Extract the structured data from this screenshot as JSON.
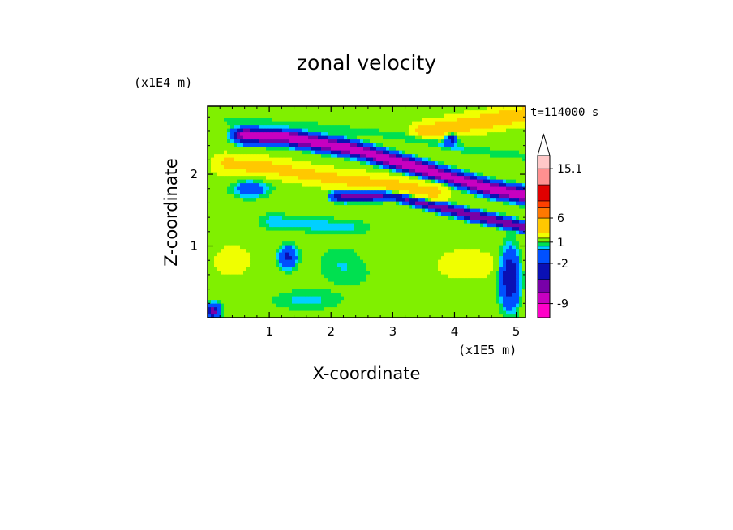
{
  "chart_data": {
    "type": "heatmap",
    "title": "zonal velocity",
    "xlabel": "X-coordinate",
    "ylabel": "Z-coordinate",
    "x_unit": "(x1E5 m)",
    "y_unit": "(x1E4 m)",
    "time_label": "t=114000 s",
    "xlim": [
      0,
      5.15
    ],
    "ylim": [
      0,
      2.95
    ],
    "x_ticks": [
      "1",
      "2",
      "3",
      "4",
      "5"
    ],
    "y_ticks": [
      "1",
      "2"
    ],
    "colorbar": {
      "levels": [
        -12,
        -9,
        -6,
        -4,
        -2,
        0,
        0.5,
        1,
        2,
        4,
        6,
        8,
        10,
        12,
        15.1
      ],
      "colors": [
        "#ff00c8",
        "#c800c0",
        "#7800a8",
        "#0a10b4",
        "#0050ff",
        "#00d0ff",
        "#00e050",
        "#80f000",
        "#f0ff00",
        "#ffc800",
        "#ff7800",
        "#ff4000",
        "#e00000",
        "#ff9090",
        "#ffc8c8"
      ],
      "labels": [
        "15.1",
        "6",
        "1",
        "-2",
        "-9"
      ],
      "label_values": [
        15.1,
        6,
        1,
        -2,
        -9
      ],
      "extend": "max"
    },
    "features": [
      {
        "kind": "jet",
        "x": [
          0.6,
          1.3,
          2.4,
          3.6,
          4.6,
          5.2
        ],
        "z": [
          2.55,
          2.52,
          2.35,
          2.05,
          1.8,
          1.7
        ],
        "value": -8,
        "width": 0.1
      },
      {
        "kind": "jet",
        "x": [
          2.2,
          3.0,
          3.6,
          4.2,
          5.0,
          5.2
        ],
        "z": [
          1.7,
          1.72,
          1.58,
          1.45,
          1.3,
          1.25
        ],
        "value": -6,
        "width": 0.07
      },
      {
        "kind": "jet",
        "x": [
          0.3,
          1.0,
          2.0,
          3.0,
          3.7
        ],
        "z": [
          2.15,
          2.1,
          1.95,
          1.85,
          1.75
        ],
        "value": 5,
        "width": 0.12
      },
      {
        "kind": "jet",
        "x": [
          3.5,
          4.2,
          5.2
        ],
        "z": [
          2.6,
          2.7,
          2.85
        ],
        "value": 6,
        "width": 0.12
      },
      {
        "kind": "jet",
        "x": [
          0.4,
          1.5,
          3.0,
          4.2,
          5.2
        ],
        "z": [
          2.75,
          2.7,
          2.55,
          2.35,
          2.25
        ],
        "value": 0.5,
        "width": 0.06
      },
      {
        "kind": "jet",
        "x": [
          1.0,
          1.8,
          2.5
        ],
        "z": [
          1.35,
          1.3,
          1.25
        ],
        "value": 0.2,
        "width": 0.12
      },
      {
        "kind": "blob",
        "x": 2.3,
        "z": 0.75,
        "value": 0.2,
        "rx": 0.5,
        "rz": 0.3
      },
      {
        "kind": "blob",
        "x": 1.3,
        "z": 0.85,
        "value": -2.5,
        "rx": 0.15,
        "rz": 0.15
      },
      {
        "kind": "blob",
        "x": 4.2,
        "z": 0.75,
        "value": 3,
        "rx": 0.5,
        "rz": 0.2
      },
      {
        "kind": "blob",
        "x": 0.4,
        "z": 0.8,
        "value": 2.5,
        "rx": 0.35,
        "rz": 0.25
      },
      {
        "kind": "blob",
        "x": 2.9,
        "z": 0.95,
        "value": 1.5,
        "rx": 0.6,
        "rz": 0.35
      },
      {
        "kind": "blob",
        "x": 1.6,
        "z": 0.25,
        "value": 0.3,
        "rx": 0.6,
        "rz": 0.15
      },
      {
        "kind": "blob",
        "x": 4.9,
        "z": 0.55,
        "value": -4,
        "rx": 0.15,
        "rz": 0.4
      },
      {
        "kind": "blob",
        "x": 0.1,
        "z": 0.1,
        "value": -5,
        "rx": 0.1,
        "rz": 0.1
      },
      {
        "kind": "blob",
        "x": 0.7,
        "z": 1.8,
        "value": -1,
        "rx": 0.3,
        "rz": 0.12
      },
      {
        "kind": "blob",
        "x": 3.95,
        "z": 2.5,
        "value": -3,
        "rx": 0.1,
        "rz": 0.08
      }
    ],
    "background_value": 1.5
  }
}
